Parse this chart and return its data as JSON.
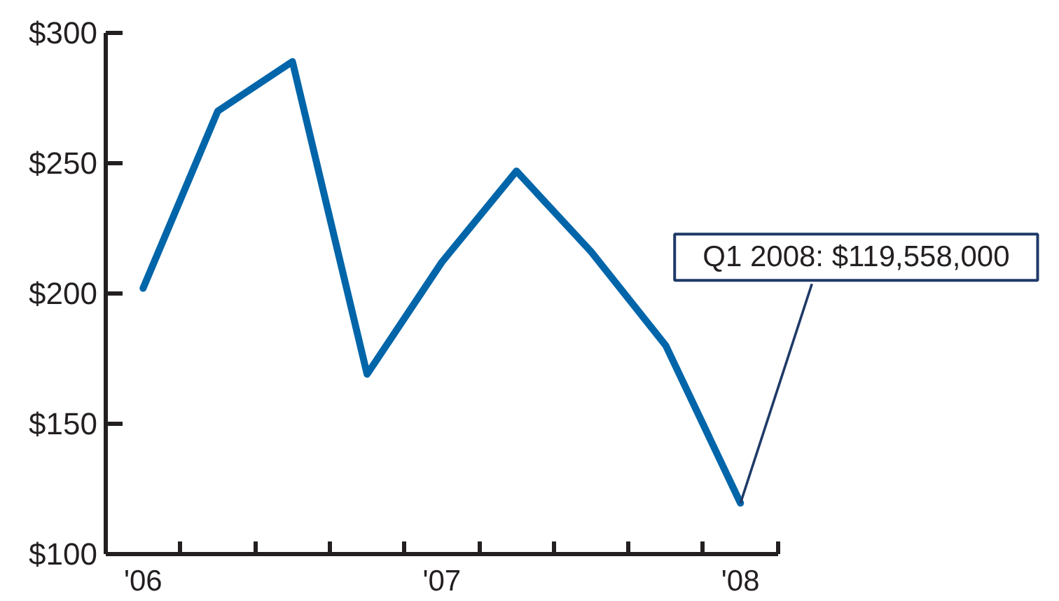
{
  "chart_data": {
    "type": "line",
    "categories": [
      "'06",
      null,
      null,
      null,
      "'07",
      null,
      null,
      null,
      "'08"
    ],
    "series": [
      {
        "color": "#0065a9",
        "values": [
          202,
          270,
          289,
          169,
          212,
          247,
          216,
          180,
          119.558
        ]
      }
    ],
    "ylim": [
      100,
      300
    ],
    "yticks": [
      {
        "value": 100,
        "label": "$100"
      },
      {
        "value": 150,
        "label": "$150"
      },
      {
        "value": 200,
        "label": "$200"
      },
      {
        "value": 250,
        "label": "$250"
      },
      {
        "value": 300,
        "label": "$300"
      }
    ],
    "grid": false,
    "line_style": "solid",
    "annotations": [
      {
        "text": "Q1 2008: $119,558,000",
        "x": "'08",
        "y": 119.558
      }
    ]
  }
}
